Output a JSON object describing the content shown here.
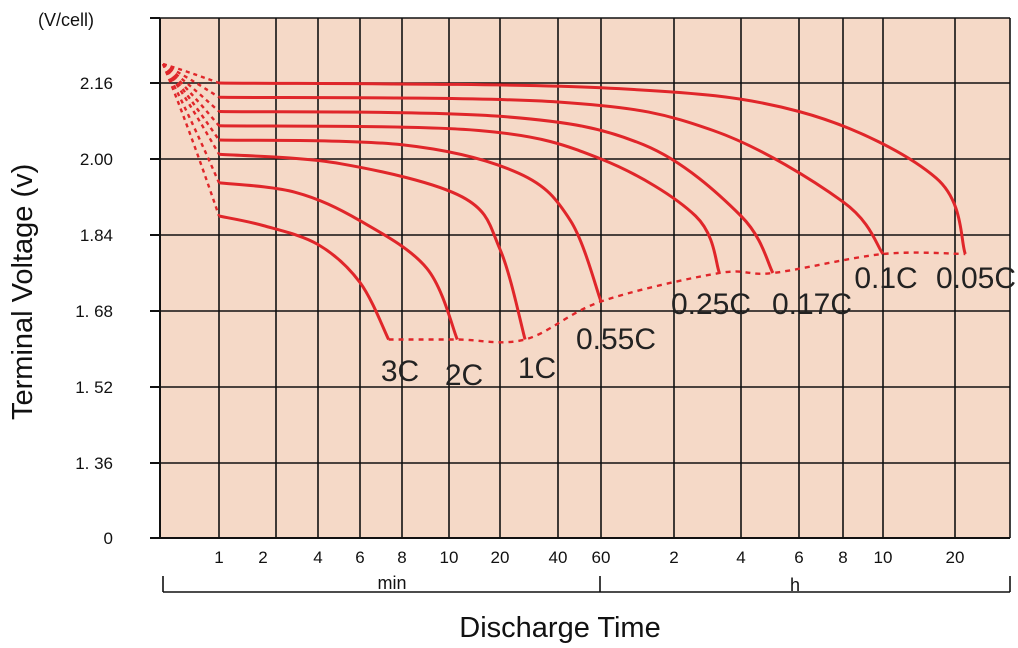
{
  "chart_data": {
    "type": "line",
    "unit_label": "(V/cell)",
    "ylabel": "Terminal  Voltage  (v)",
    "xlabel": "Discharge Time",
    "y_ticks": [
      "0",
      "1. 36",
      "1. 52",
      "1. 68",
      "1.84",
      "2.00",
      "2.16"
    ],
    "y_tick_values": [
      0,
      1.36,
      1.52,
      1.68,
      1.84,
      2.0,
      2.16
    ],
    "ylim": [
      0,
      2.28
    ],
    "y_scale": "broken-linear",
    "x_scale": "log",
    "x_min_ticks": [
      "1",
      "2",
      "4",
      "6",
      "8",
      "10",
      "20",
      "40",
      "60"
    ],
    "x_hour_ticks": [
      "2",
      "4",
      "6",
      "8",
      "10",
      "20"
    ],
    "x_group_min": "min",
    "x_group_hour": "h",
    "grid": true,
    "background": "#f5d9c7",
    "series_color": "#e0262a",
    "series": [
      {
        "name": "3C",
        "x_minutes": [
          1,
          2,
          4,
          6,
          7.3
        ],
        "y_volts": [
          1.88,
          1.86,
          1.82,
          1.74,
          1.62
        ],
        "end_minutes": 7.3
      },
      {
        "name": "2C",
        "x_minutes": [
          1,
          3,
          6,
          9,
          11.2
        ],
        "y_volts": [
          1.95,
          1.93,
          1.87,
          1.77,
          1.62
        ],
        "end_minutes": 11.2
      },
      {
        "name": "1C",
        "x_minutes": [
          1,
          5,
          12,
          20,
          27
        ],
        "y_volts": [
          2.01,
          1.99,
          1.92,
          1.81,
          1.62
        ],
        "end_minutes": 27
      },
      {
        "name": "0.55C",
        "x_minutes": [
          1,
          8,
          25,
          45,
          60
        ],
        "y_volts": [
          2.04,
          2.03,
          1.97,
          1.87,
          1.7
        ],
        "end_minutes": 60
      },
      {
        "name": "0.25C",
        "x_minutes": [
          1,
          15,
          60,
          150,
          192
        ],
        "y_volts": [
          2.07,
          2.06,
          2.0,
          1.88,
          1.76
        ],
        "end_minutes": 192
      },
      {
        "name": "0.17C",
        "x_minutes": [
          1,
          20,
          90,
          240,
          300
        ],
        "y_volts": [
          2.1,
          2.09,
          2.03,
          1.88,
          1.76
        ],
        "end_minutes": 300
      },
      {
        "name": "0.1C",
        "x_minutes": [
          1,
          40,
          180,
          480,
          600
        ],
        "y_volts": [
          2.13,
          2.12,
          2.06,
          1.91,
          1.8
        ],
        "end_minutes": 600
      },
      {
        "name": "0.05C",
        "x_minutes": [
          1,
          60,
          360,
          1000,
          1320
        ],
        "y_volts": [
          2.16,
          2.15,
          2.1,
          1.96,
          1.8
        ],
        "end_minutes": 1320
      }
    ],
    "cutoff_line_style": "dashed",
    "initial_voltage": 2.2
  }
}
